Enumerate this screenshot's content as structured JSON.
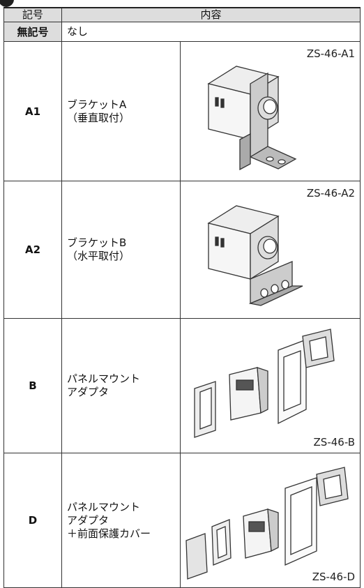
{
  "header": {
    "code": "記号",
    "content": "内容"
  },
  "rows": [
    {
      "code": "無記号",
      "desc": [
        "なし"
      ]
    },
    {
      "code": "A1",
      "desc": [
        "ブラケットA",
        "（垂直取付）"
      ],
      "model": "ZS-46-A1"
    },
    {
      "code": "A2",
      "desc": [
        "ブラケットB",
        "（水平取付）"
      ],
      "model": "ZS-46-A2"
    },
    {
      "code": "B",
      "desc": [
        "パネルマウント",
        "アダプタ"
      ],
      "model": "ZS-46-B"
    },
    {
      "code": "D",
      "desc": [
        "パネルマウント",
        "アダプタ",
        "＋前面保護カバー"
      ],
      "model": "ZS-46-D"
    }
  ]
}
